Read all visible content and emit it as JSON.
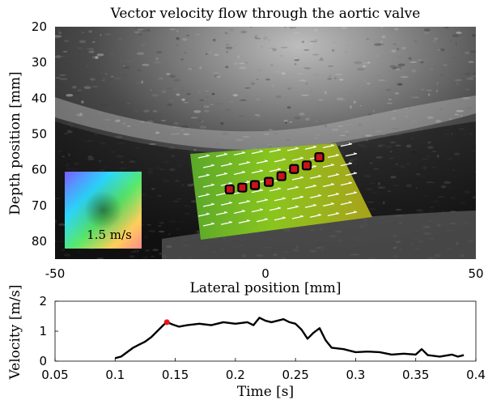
{
  "panels": [
    {
      "title": "Vector velocity flow through the aortic valve",
      "xlabel": "Lateral position [mm]",
      "ylabel": "Depth position [mm]",
      "xticks": [
        -50,
        0,
        50
      ],
      "yticks": [
        20,
        30,
        40,
        50,
        60,
        70,
        80
      ],
      "colorwheel_label": "1.5 m/s",
      "marker_color": "#c8141e",
      "overlay_color": "#7fb51e"
    },
    {
      "xlabel": "Time [s]",
      "ylabel": "Velocity [m/s]",
      "xticks": [
        "0.05",
        "0.1",
        "0.15",
        "0.2",
        "0.25",
        "0.3",
        "0.35",
        "0.4"
      ],
      "yticks": [
        "0",
        "1",
        "2"
      ]
    }
  ],
  "chart_data": [
    {
      "type": "scatter",
      "title": "Vector velocity flow through the aortic valve",
      "xlabel": "Lateral position [mm]",
      "ylabel": "Depth position [mm]",
      "xlim": [
        -50,
        50
      ],
      "ylim": [
        85,
        20
      ],
      "x": [
        -8.5,
        -5.5,
        -2.5,
        0.8,
        3.8,
        6.8,
        9.8,
        12.8
      ],
      "y": [
        65.5,
        65.0,
        64.3,
        63.4,
        61.8,
        59.8,
        58.8,
        56.5
      ],
      "grid": false
    },
    {
      "type": "line",
      "xlabel": "Time [s]",
      "ylabel": "Velocity [m/s]",
      "xlim": [
        0.05,
        0.4
      ],
      "ylim": [
        0,
        2
      ],
      "grid": false,
      "x": [
        0.1,
        0.105,
        0.11,
        0.115,
        0.12,
        0.125,
        0.13,
        0.135,
        0.14,
        0.143,
        0.148,
        0.153,
        0.16,
        0.17,
        0.18,
        0.19,
        0.2,
        0.21,
        0.215,
        0.22,
        0.225,
        0.23,
        0.235,
        0.24,
        0.245,
        0.25,
        0.255,
        0.26,
        0.265,
        0.27,
        0.275,
        0.28,
        0.29,
        0.3,
        0.31,
        0.32,
        0.33,
        0.34,
        0.35,
        0.355,
        0.36,
        0.37,
        0.38,
        0.385,
        0.39
      ],
      "y": [
        0.1,
        0.15,
        0.3,
        0.45,
        0.55,
        0.65,
        0.8,
        1.0,
        1.2,
        1.3,
        1.22,
        1.15,
        1.2,
        1.25,
        1.2,
        1.3,
        1.25,
        1.3,
        1.2,
        1.45,
        1.35,
        1.3,
        1.35,
        1.4,
        1.3,
        1.25,
        1.05,
        0.75,
        0.95,
        1.1,
        0.7,
        0.45,
        0.4,
        0.3,
        0.32,
        0.3,
        0.22,
        0.25,
        0.22,
        0.4,
        0.2,
        0.15,
        0.22,
        0.15,
        0.2
      ],
      "highlight_point": {
        "x": 0.143,
        "y": 1.3
      }
    }
  ]
}
